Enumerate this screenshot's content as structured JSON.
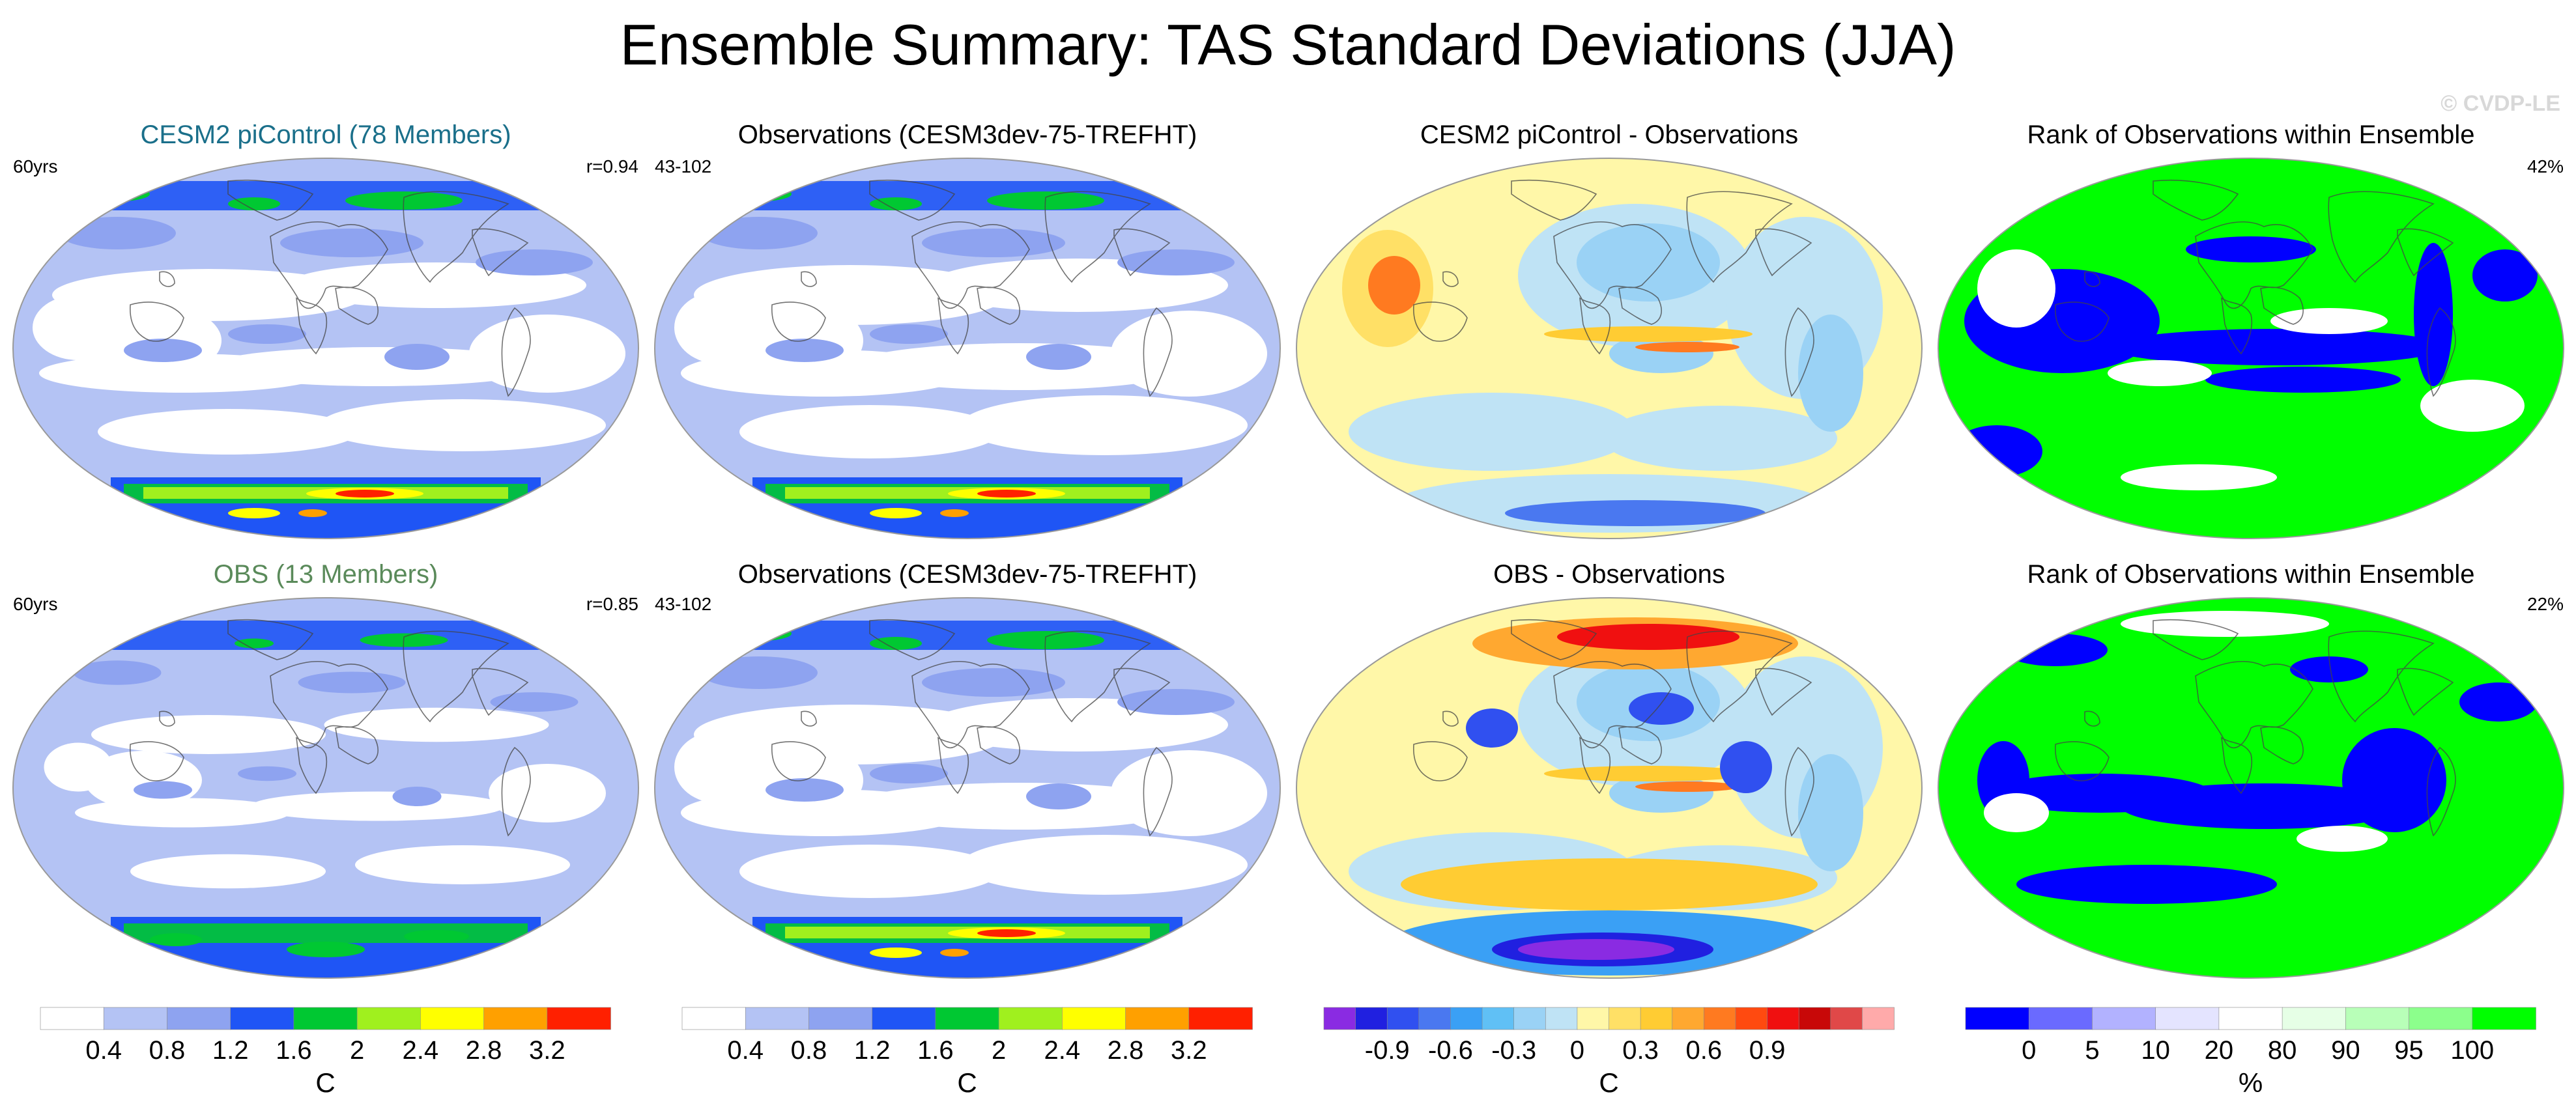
{
  "title": "Ensemble Summary: TAS Standard Deviations (JJA)",
  "watermark": "© CVDP-LE",
  "panels": [
    {
      "title": "CESM2 piControl (78 Members)",
      "title_color": "#1a6f8a",
      "left_label": "60yrs",
      "right_label": "r=0.94",
      "kind": "std",
      "variant": "model"
    },
    {
      "title": "Observations (CESM3dev-75-TREFHT)",
      "title_color": "#000000",
      "left_label": "43-102",
      "right_label": "",
      "kind": "std",
      "variant": "obs"
    },
    {
      "title": "CESM2 piControl - Observations",
      "title_color": "#000000",
      "left_label": "",
      "right_label": "",
      "kind": "diff",
      "variant": "diff1"
    },
    {
      "title": "Rank of Observations within Ensemble",
      "title_color": "#000000",
      "left_label": "",
      "right_label": "42%",
      "kind": "rank",
      "variant": "rank1"
    },
    {
      "title": "OBS (13 Members)",
      "title_color": "#5a8a5a",
      "left_label": "60yrs",
      "right_label": "r=0.85",
      "kind": "std",
      "variant": "obsens"
    },
    {
      "title": "Observations (CESM3dev-75-TREFHT)",
      "title_color": "#000000",
      "left_label": "43-102",
      "right_label": "",
      "kind": "std",
      "variant": "obs"
    },
    {
      "title": "OBS - Observations",
      "title_color": "#000000",
      "left_label": "",
      "right_label": "",
      "kind": "diff",
      "variant": "diff2"
    },
    {
      "title": "Rank of Observations within Ensemble",
      "title_color": "#000000",
      "left_label": "",
      "right_label": "22%",
      "kind": "rank",
      "variant": "rank2"
    }
  ],
  "colorbars": [
    {
      "unit": "C",
      "labels": [
        "0.4",
        "0.8",
        "1.2",
        "1.6",
        "2",
        "2.4",
        "2.8",
        "3.2"
      ],
      "colors": [
        "#ffffff",
        "#b4c3f4",
        "#8ea3f0",
        "#1f55f5",
        "#00c832",
        "#a0f01e",
        "#ffff00",
        "#ffa000",
        "#ff2000"
      ]
    },
    {
      "unit": "C",
      "labels": [
        "0.4",
        "0.8",
        "1.2",
        "1.6",
        "2",
        "2.4",
        "2.8",
        "3.2"
      ],
      "colors": [
        "#ffffff",
        "#b4c3f4",
        "#8ea3f0",
        "#1f55f5",
        "#00c832",
        "#a0f01e",
        "#ffff00",
        "#ffa000",
        "#ff2000"
      ]
    },
    {
      "unit": "C",
      "labels": [
        "-0.9",
        "-0.6",
        "-0.3",
        "0",
        "0.3",
        "0.6",
        "0.9"
      ],
      "colors": [
        "#8a2be2",
        "#2020e0",
        "#3050f0",
        "#4a78f0",
        "#3aa0f5",
        "#60c0f5",
        "#9ad2f5",
        "#bfe3f5",
        "#fff7a8",
        "#ffe066",
        "#ffcc33",
        "#ffa830",
        "#ff7a20",
        "#ff4a10",
        "#f01010",
        "#c80808",
        "#e04848",
        "#ffaaaa"
      ]
    },
    {
      "unit": "%",
      "labels": [
        "0",
        "5",
        "10",
        "20",
        "80",
        "90",
        "95",
        "100"
      ],
      "colors": [
        "#0000ff",
        "#6a6aff",
        "#b2b2ff",
        "#e4e4ff",
        "#ffffff",
        "#e6ffe6",
        "#b8ffb8",
        "#8cff8c",
        "#00ff00"
      ]
    }
  ]
}
